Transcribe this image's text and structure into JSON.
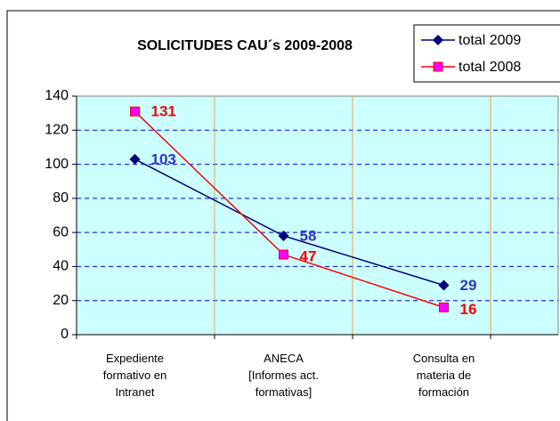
{
  "chart_data": {
    "type": "line",
    "title": "SOLICITUDES CAU´s 2009-2008",
    "categories": [
      "Expediente\nformativo en\nIntranet",
      "ANECA\n[Informes act.\nformativas]",
      "Consulta en\nmateria de\nformación"
    ],
    "series": [
      {
        "name": "total 2009",
        "color": "#000080",
        "marker": "diamond",
        "marker_color": "#000080",
        "label_color": "#3333cc",
        "values": [
          103,
          58,
          29
        ]
      },
      {
        "name": "total 2008",
        "color": "#ff0000",
        "marker": "square",
        "marker_color": "#ff00ff",
        "label_color": "#ff0000",
        "values": [
          131,
          47,
          16
        ]
      }
    ],
    "ylim": [
      0,
      140
    ],
    "yticks": [
      0,
      20,
      40,
      60,
      80,
      100,
      120,
      140
    ],
    "grid": true,
    "plot_background": "#ccffff",
    "legend": "top-right"
  }
}
